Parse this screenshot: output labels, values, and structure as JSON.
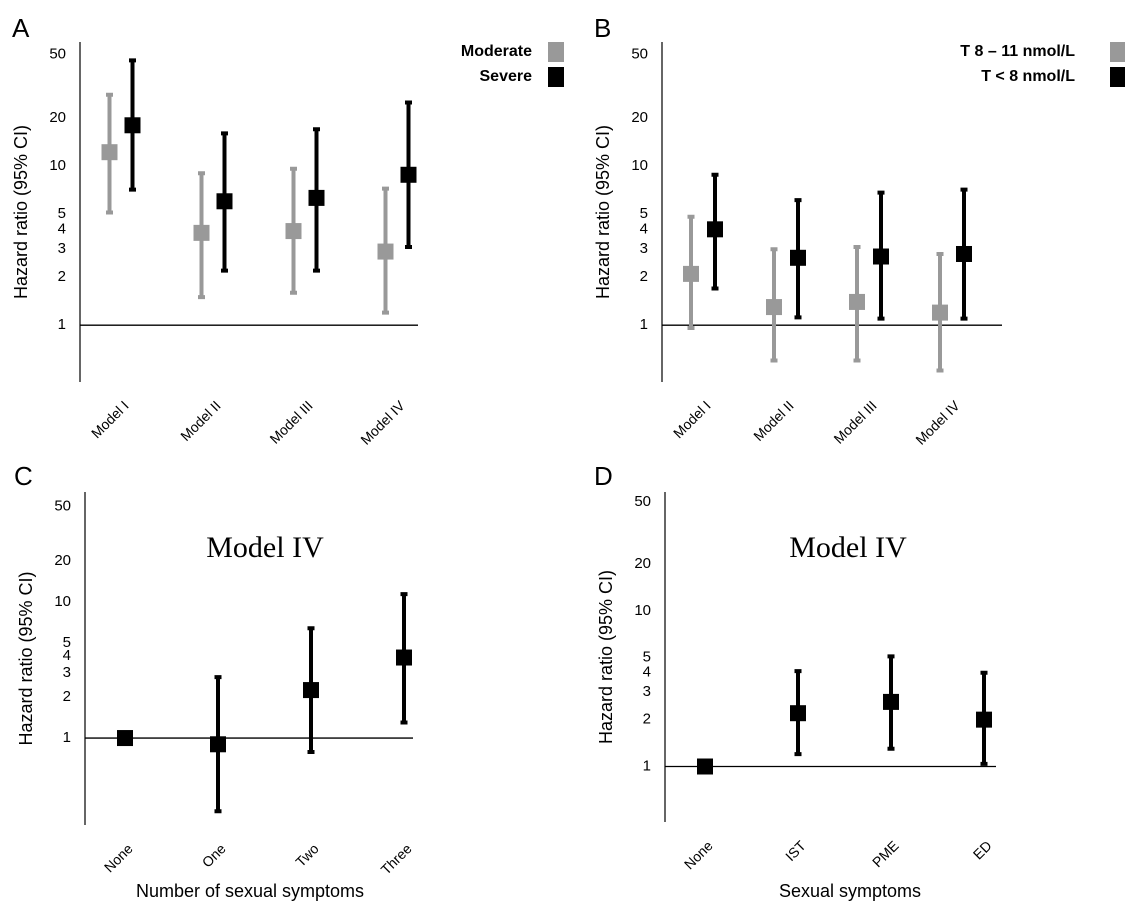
{
  "chart_data": [
    {
      "type": "errorbar",
      "panel": "A",
      "y_label": "Hazard ratio (95% CI)",
      "log_y": true,
      "ylim": [
        0.44,
        60
      ],
      "yticks": [
        1,
        2,
        3,
        4,
        5,
        10,
        20,
        50
      ],
      "reference_line": 1,
      "categories": [
        "Model I",
        "Model II",
        "Model III",
        "Model IV"
      ],
      "series": [
        {
          "name": "Moderate",
          "color": "#999999",
          "values": [
            12.2,
            3.8,
            3.9,
            2.9
          ],
          "lower": [
            5.1,
            1.5,
            1.6,
            1.2
          ],
          "upper": [
            28,
            9.0,
            9.6,
            7.2
          ]
        },
        {
          "name": "Severe",
          "color": "#000000",
          "values": [
            18,
            6.0,
            6.3,
            8.8
          ],
          "lower": [
            7.1,
            2.2,
            2.2,
            3.1
          ],
          "upper": [
            46,
            16,
            17,
            25
          ]
        }
      ]
    },
    {
      "type": "errorbar",
      "panel": "B",
      "y_label": "Hazard ratio (95% CI)",
      "log_y": true,
      "ylim": [
        0.44,
        60
      ],
      "yticks": [
        1,
        2,
        3,
        4,
        5,
        10,
        20,
        50
      ],
      "reference_line": 1,
      "categories": [
        "Model I",
        "Model II",
        "Model III",
        "Model IV"
      ],
      "series": [
        {
          "name": "T 8 – 11 nmol/L",
          "color": "#999999",
          "values": [
            2.1,
            1.3,
            1.4,
            1.2
          ],
          "lower": [
            0.96,
            0.6,
            0.6,
            0.52
          ],
          "upper": [
            4.8,
            3.0,
            3.1,
            2.8
          ]
        },
        {
          "name": "T < 8 nmol/L",
          "color": "#000000",
          "values": [
            4.0,
            2.65,
            2.7,
            2.8
          ],
          "lower": [
            1.7,
            1.12,
            1.1,
            1.1
          ],
          "upper": [
            8.8,
            6.1,
            6.8,
            7.1
          ]
        }
      ]
    },
    {
      "type": "errorbar",
      "panel": "C",
      "title": "Model IV",
      "y_label": "Hazard ratio (95% CI)",
      "x_label": "Number of sexual symptoms",
      "log_y": true,
      "ylim": [
        0.23,
        64
      ],
      "yticks": [
        1,
        2,
        3,
        4,
        5,
        10,
        20,
        50
      ],
      "reference_line": 1,
      "categories": [
        "None",
        "One",
        "Two",
        "Three"
      ],
      "series": [
        {
          "color": "#000000",
          "values": [
            1,
            0.9,
            2.25,
            3.9
          ],
          "lower": [
            null,
            0.29,
            0.79,
            1.3
          ],
          "upper": [
            null,
            2.8,
            6.4,
            11.4
          ]
        }
      ]
    },
    {
      "type": "errorbar",
      "panel": "D",
      "title": "Model IV",
      "y_label": "Hazard ratio (95% CI)",
      "x_label": "Sexual symptoms",
      "log_y": true,
      "ylim": [
        0.44,
        58
      ],
      "yticks": [
        1,
        2,
        3,
        4,
        5,
        10,
        20,
        50
      ],
      "reference_line": 1,
      "categories": [
        "None",
        "IST",
        "PME",
        "ED"
      ],
      "series": [
        {
          "color": "#000000",
          "values": [
            1,
            2.2,
            2.6,
            2.0
          ],
          "lower": [
            null,
            1.2,
            1.3,
            1.04
          ],
          "upper": [
            null,
            4.1,
            5.1,
            4.0
          ]
        }
      ]
    }
  ]
}
